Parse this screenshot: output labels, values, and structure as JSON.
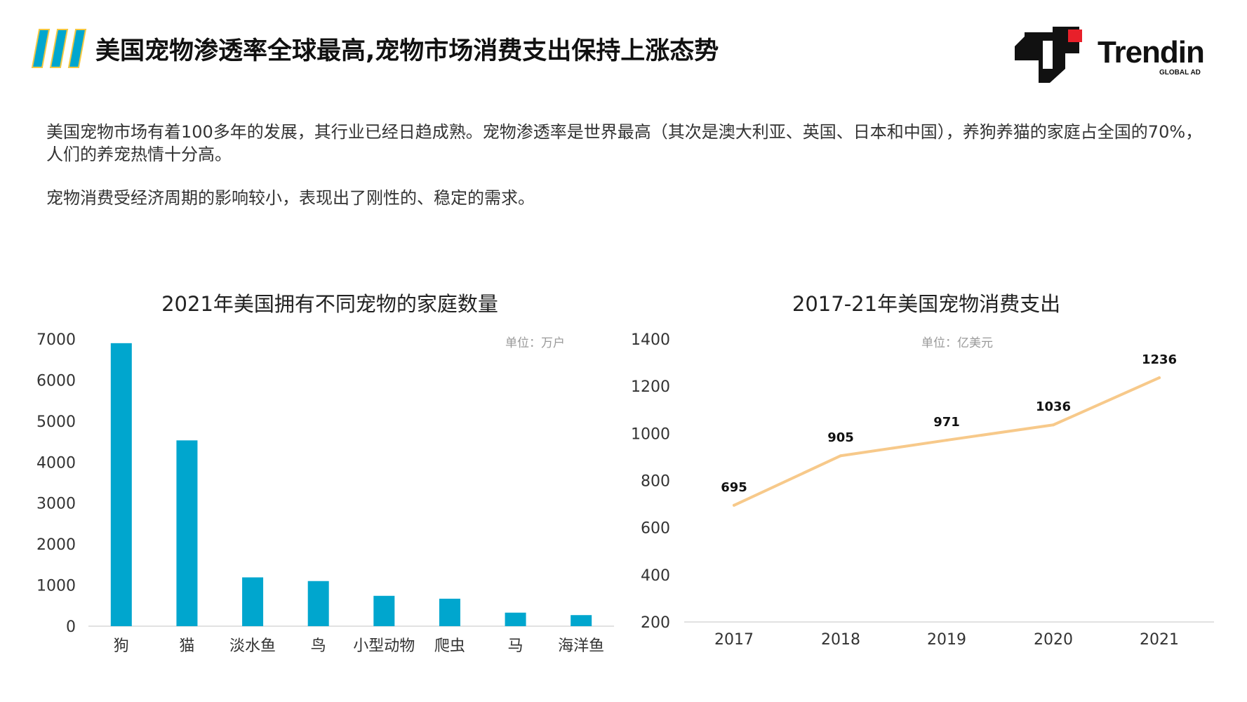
{
  "header": {
    "title": "美国宠物渗透率全球最高,宠物市场消费支出保持上涨态势",
    "logo_text": "Trendin",
    "logo_subtext": "GLOBAL AD",
    "accent_color": "#00A6CE",
    "accent_color_secondary": "#F5C842",
    "logo_red": "#E8202A"
  },
  "intro": {
    "paragraph1": "美国宠物市场有着100多年的发展，其行业已经日趋成熟。宠物渗透率是世界最高（其次是澳大利亚、英国、日本和中国），养狗养猫的家庭占全国的70%，人们的养宠热情十分高。",
    "paragraph2": "宠物消费受经济周期的影响较小，表现出了刚性的、稳定的需求。"
  },
  "chart_data": [
    {
      "type": "bar",
      "title": "2021年美国拥有不同宠物的家庭数量",
      "unit_note": "单位：万户",
      "categories": [
        "狗",
        "猫",
        "淡水鱼",
        "鸟",
        "小型动物",
        "爬虫",
        "马",
        "海洋鱼"
      ],
      "values": [
        6900,
        4530,
        1190,
        1100,
        740,
        670,
        330,
        270
      ],
      "ylim": [
        0,
        7000
      ],
      "yticks": [
        0,
        1000,
        2000,
        3000,
        4000,
        5000,
        6000,
        7000
      ],
      "color": "#00A6CE",
      "grid": false
    },
    {
      "type": "line",
      "title": "2017-21年美国宠物消费支出",
      "unit_note": "单位：亿美元",
      "x": [
        "2017",
        "2018",
        "2019",
        "2020",
        "2021"
      ],
      "values": [
        695,
        905,
        971,
        1036,
        1236
      ],
      "data_labels": [
        "695",
        "905",
        "971",
        "1036",
        "1236"
      ],
      "ylim": [
        200,
        1400
      ],
      "yticks": [
        200,
        400,
        600,
        800,
        1000,
        1200,
        1400
      ],
      "color": "#F7C98A",
      "grid": false
    }
  ]
}
